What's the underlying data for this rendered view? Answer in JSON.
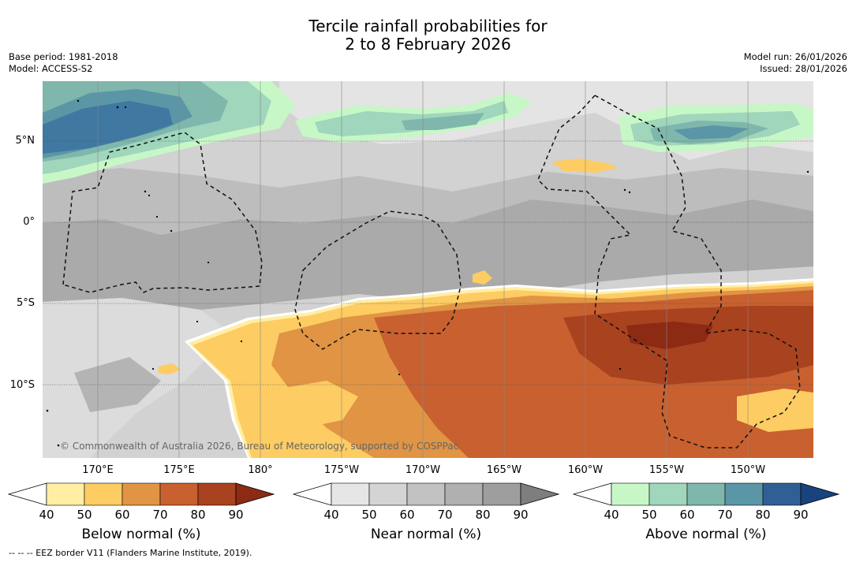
{
  "title": {
    "line1": "Tercile rainfall probabilities for",
    "line2": "2 to 8 February 2026"
  },
  "meta": {
    "base_period": "Base period: 1981-2018",
    "model": "Model: ACCESS-S2",
    "model_run": "Model run: 26/01/2026",
    "issued": "Issued: 28/01/2026"
  },
  "map": {
    "copyright": "© Commonwealth of Australia 2026, Bureau of Meteorology, supported by COSPPac",
    "lat_labels": [
      "5°N",
      "0°",
      "5°S",
      "10°S"
    ],
    "lon_labels": [
      "170°E",
      "175°E",
      "180°",
      "175°W",
      "170°W",
      "165°W",
      "160°W",
      "155°W",
      "150°W"
    ]
  },
  "colorbars": {
    "below": {
      "title": "Below normal (%)",
      "ticks": [
        "40",
        "50",
        "60",
        "70",
        "80",
        "90"
      ],
      "colors": [
        "#ffffff",
        "#ffeea4",
        "#fdcc63",
        "#e09444",
        "#c8602f",
        "#a8421f",
        "#8c2a14"
      ]
    },
    "near": {
      "title": "Near normal (%)",
      "ticks": [
        "40",
        "50",
        "60",
        "70",
        "80",
        "90"
      ],
      "colors": [
        "#ffffff",
        "#e6e6e6",
        "#d4d4d4",
        "#c2c2c2",
        "#b0b0b0",
        "#9e9e9e",
        "#7e7e7e"
      ]
    },
    "above": {
      "title": "Above normal (%)",
      "ticks": [
        "40",
        "50",
        "60",
        "70",
        "80",
        "90"
      ],
      "colors": [
        "#ffffff",
        "#c7f7c7",
        "#9fd6bc",
        "#7fb7ac",
        "#5a96a6",
        "#305f96",
        "#19437e"
      ]
    }
  },
  "footnote": "-- -- -- EEZ border V11 (Flanders Marine Institute, 2019)."
}
